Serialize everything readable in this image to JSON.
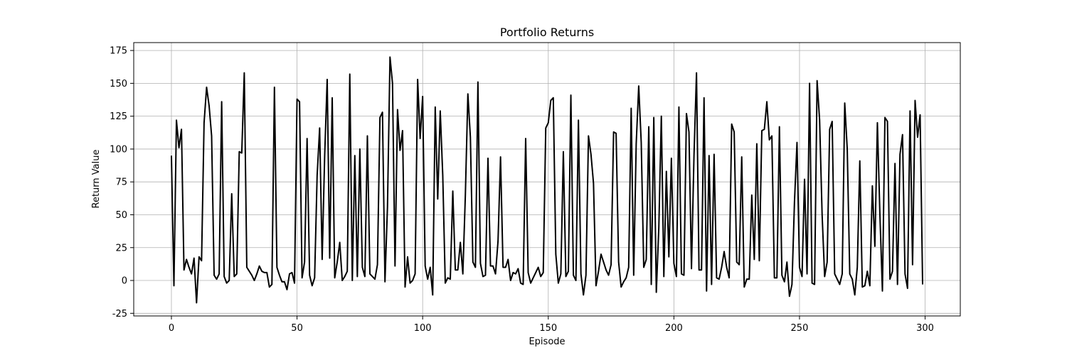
{
  "chart_data": {
    "type": "line",
    "title": "Portfolio Returns",
    "xlabel": "Episode",
    "ylabel": "Return Value",
    "xlim": [
      -15,
      314
    ],
    "ylim": [
      -27,
      181
    ],
    "xticks": [
      0,
      50,
      100,
      150,
      200,
      250,
      300
    ],
    "yticks": [
      -25,
      0,
      25,
      50,
      75,
      100,
      125,
      150,
      175
    ],
    "grid": true,
    "series": [
      {
        "color": "#000000",
        "values": [
          95,
          -4,
          122,
          101,
          115,
          8,
          16,
          10,
          5,
          17,
          -17,
          18,
          15,
          120,
          147,
          133,
          110,
          4,
          1,
          5,
          136,
          3,
          -2,
          0,
          66,
          3,
          5,
          98,
          97,
          158,
          10,
          7,
          4,
          0,
          5,
          11,
          7,
          6,
          6,
          -5,
          -3,
          147,
          10,
          4,
          -1,
          -1,
          -7,
          5,
          6,
          -2,
          138,
          136,
          2,
          14,
          108,
          4,
          -4,
          2,
          80,
          116,
          16,
          95,
          153,
          17,
          139,
          2,
          14,
          29,
          0,
          3,
          7,
          157,
          0,
          95,
          3,
          100,
          10,
          3,
          110,
          5,
          3,
          1,
          12,
          124,
          128,
          -1,
          56,
          170,
          150,
          11,
          130,
          99,
          114,
          -5,
          18,
          -2,
          0,
          5,
          153,
          108,
          140,
          11,
          1,
          10,
          -11,
          132,
          62,
          129,
          80,
          -2,
          2,
          1,
          68,
          8,
          8,
          29,
          5,
          65,
          142,
          109,
          14,
          10,
          151,
          13,
          3,
          4,
          93,
          11,
          11,
          5,
          30,
          94,
          10,
          10,
          16,
          0,
          6,
          5,
          9,
          -2,
          -3,
          108,
          6,
          -2,
          2,
          6,
          10,
          3,
          6,
          116,
          120,
          137,
          139,
          20,
          -2,
          5,
          98,
          3,
          7,
          141,
          4,
          0,
          122,
          5,
          -11,
          4,
          110,
          96,
          74,
          -4,
          7,
          20,
          14,
          8,
          4,
          12,
          113,
          112,
          14,
          -5,
          -1,
          2,
          10,
          131,
          4,
          104,
          148,
          105,
          10,
          16,
          117,
          -3,
          124,
          -9,
          40,
          125,
          3,
          83,
          18,
          93,
          13,
          3,
          132,
          5,
          4,
          127,
          113,
          9,
          95,
          158,
          8,
          8,
          139,
          -8,
          95,
          -3,
          96,
          2,
          1,
          10,
          22,
          10,
          2,
          119,
          113,
          14,
          12,
          94,
          -5,
          1,
          1,
          65,
          16,
          104,
          15,
          114,
          115,
          136,
          107,
          110,
          2,
          2,
          117,
          4,
          -1,
          14,
          -12,
          -3,
          60,
          105,
          10,
          3,
          77,
          5,
          150,
          -2,
          -3,
          152,
          122,
          50,
          3,
          14,
          115,
          121,
          5,
          1,
          -3,
          5,
          135,
          100,
          5,
          1,
          -11,
          10,
          91,
          -5,
          -4,
          7,
          -4,
          72,
          26,
          120,
          50,
          -8,
          124,
          121,
          1,
          7,
          89,
          -3,
          96,
          111,
          5,
          -6,
          129,
          12,
          137,
          109,
          126,
          -3
        ]
      }
    ]
  }
}
